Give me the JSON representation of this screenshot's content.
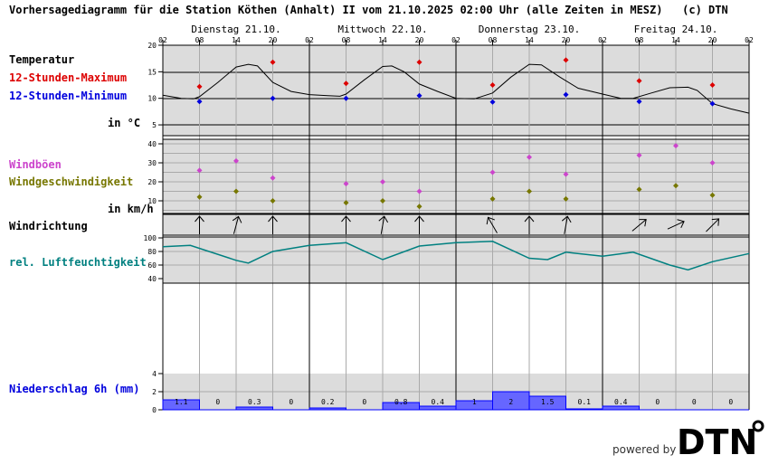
{
  "title": "Vorhersagediagramm für die Station Köthen (Anhalt) II vom 21.10.2025 02:00 Uhr (alle Zeiten in MESZ)   (c) DTN",
  "labels": {
    "temp": "Temperatur",
    "tmax": "12-Stunden-Maximum",
    "tmin": "12-Stunden-Minimum",
    "temp_unit": "in °C",
    "gust": "Windböen",
    "wind": "Windgeschwindigkeit",
    "wind_unit": "in km/h",
    "dir": "Windrichtung",
    "hum": "rel. Luftfeuchtigkeit",
    "precip": "Niederschlag 6h (mm)"
  },
  "footer": {
    "powered": "powered by",
    "logo": "DTN"
  },
  "colors": {
    "max": "#dd0000",
    "min": "#0000dd",
    "gust": "#cc44cc",
    "wind": "#777700",
    "hum": "#008080",
    "precip": "#6666ff",
    "panel": "#dcdcdc"
  },
  "chart_data": {
    "type": "line",
    "days": [
      "Dienstag 21.10.",
      "Mittwoch 22.10.",
      "Donnerstag 23.10.",
      "Freitag 24.10."
    ],
    "hour_ticks": [
      "02",
      "08",
      "14",
      "20",
      "02",
      "08",
      "14",
      "20",
      "02",
      "08",
      "14",
      "20",
      "02",
      "08",
      "14",
      "20",
      "02"
    ],
    "temperature": {
      "ylim": [
        5,
        20
      ],
      "ticks": [
        "20",
        "15",
        "10",
        "5"
      ],
      "curve": [
        [
          "21.10. 02:00",
          10.6
        ],
        [
          "21.10. 05:00",
          10.0
        ],
        [
          "21.10. 07:00",
          9.9
        ],
        [
          "21.10. 08:00",
          10.3
        ],
        [
          "21.10. 11:00",
          13
        ],
        [
          "21.10. 14:00",
          15.9
        ],
        [
          "21.10. 16:00",
          16.4
        ],
        [
          "21.10. 17:30",
          16.1
        ],
        [
          "21.10. 20:00",
          13
        ],
        [
          "21.10. 23:00",
          11.3
        ],
        [
          "22.10. 02:00",
          10.7
        ],
        [
          "22.10. 05:00",
          10.5
        ],
        [
          "22.10. 07:00",
          10.4
        ],
        [
          "22.10. 08:00",
          10.8
        ],
        [
          "22.10. 11:00",
          13.5
        ],
        [
          "22.10. 14:00",
          16
        ],
        [
          "22.10. 15:30",
          16.1
        ],
        [
          "22.10. 17:30",
          15
        ],
        [
          "22.10. 20:00",
          12.7
        ],
        [
          "22.10. 23:00",
          11.3
        ],
        [
          "23.10. 02:00",
          10.0
        ],
        [
          "23.10. 05:00",
          9.9
        ],
        [
          "23.10. 08:00",
          11
        ],
        [
          "23.10. 11:00",
          14
        ],
        [
          "23.10. 14:00",
          16.4
        ],
        [
          "23.10. 16:00",
          16.3
        ],
        [
          "23.10. 19:00",
          14
        ],
        [
          "23.10. 22:00",
          11.9
        ],
        [
          "24.10. 02:00",
          10.8
        ],
        [
          "24.10. 05:00",
          10.0
        ],
        [
          "24.10. 07:00",
          10.0
        ],
        [
          "24.10. 10:00",
          11
        ],
        [
          "24.10. 13:00",
          12
        ],
        [
          "24.10. 16:00",
          12.1
        ],
        [
          "24.10. 17:30",
          11.5
        ],
        [
          "24.10. 20:00",
          9
        ],
        [
          "24.10. 23:00",
          8
        ],
        [
          "25.10. 02:00",
          7.2
        ]
      ],
      "max": [
        [
          "21.10. 08:00",
          12.2
        ],
        [
          "21.10. 20:00",
          16.8
        ],
        [
          "22.10. 08:00",
          12.8
        ],
        [
          "22.10. 20:00",
          16.8
        ],
        [
          "23.10. 08:00",
          12.5
        ],
        [
          "23.10. 20:00",
          17.2
        ],
        [
          "24.10. 08:00",
          13.3
        ],
        [
          "24.10. 20:00",
          12.5
        ]
      ],
      "min": [
        [
          "21.10. 08:00",
          9.4
        ],
        [
          "21.10. 20:00",
          10.0
        ],
        [
          "22.10. 08:00",
          10.0
        ],
        [
          "22.10. 20:00",
          10.5
        ],
        [
          "23.10. 08:00",
          9.3
        ],
        [
          "23.10. 20:00",
          10.7
        ],
        [
          "24.10. 08:00",
          9.4
        ],
        [
          "24.10. 20:00",
          9.0
        ]
      ]
    },
    "wind": {
      "ylim": [
        0,
        40
      ],
      "ticks": [
        "40",
        "30",
        "20",
        "10"
      ],
      "times": [
        "21.10. 08:00",
        "21.10. 14:00",
        "21.10. 20:00",
        "22.10. 08:00",
        "22.10. 14:00",
        "22.10. 20:00",
        "23.10. 08:00",
        "23.10. 14:00",
        "23.10. 20:00",
        "24.10. 08:00",
        "24.10. 14:00",
        "24.10. 20:00"
      ],
      "gusts": [
        26,
        31,
        22,
        19,
        20,
        15,
        25,
        33,
        24,
        34,
        39,
        30
      ],
      "speed": [
        12,
        15,
        10,
        9,
        10,
        7,
        11,
        15,
        11,
        16,
        18,
        13
      ],
      "direction_deg": [
        0,
        15,
        0,
        0,
        10,
        0,
        -30,
        0,
        10,
        50,
        65,
        45
      ]
    },
    "humidity": {
      "ylim": [
        40,
        100
      ],
      "ticks": [
        "100",
        "80",
        "60",
        "40"
      ],
      "curve": [
        [
          "21.10. 02:00",
          87
        ],
        [
          "21.10. 06:30",
          89
        ],
        [
          "21.10. 14:00",
          67
        ],
        [
          "21.10. 16:00",
          63
        ],
        [
          "21.10. 20:00",
          80
        ],
        [
          "22.10. 02:00",
          89
        ],
        [
          "22.10. 08:00",
          93
        ],
        [
          "22.10. 14:00",
          68
        ],
        [
          "22.10. 20:00",
          88
        ],
        [
          "23.10. 02:00",
          93
        ],
        [
          "23.10. 08:00",
          95
        ],
        [
          "23.10. 14:00",
          70
        ],
        [
          "23.10. 17:00",
          68
        ],
        [
          "23.10. 20:00",
          79
        ],
        [
          "24.10. 02:00",
          73
        ],
        [
          "24.10. 07:00",
          79
        ],
        [
          "24.10. 13:00",
          60
        ],
        [
          "24.10. 16:00",
          53
        ],
        [
          "24.10. 20:00",
          65
        ],
        [
          "25.10. 02:00",
          77
        ]
      ]
    },
    "precipitation": {
      "ylim": [
        0,
        4
      ],
      "ticks": [
        "4",
        "2",
        "0"
      ],
      "values": [
        1.1,
        0,
        0.3,
        0,
        0.2,
        0,
        0.8,
        0.4,
        1,
        2,
        1.5,
        0.1,
        0.4,
        0,
        0,
        0
      ],
      "labels": [
        "1.1",
        "0",
        "0.3",
        "0",
        "0.2",
        "0",
        "0.8",
        "0.4",
        "1",
        "2",
        "1.5",
        "0.1",
        "0.4",
        "0",
        "0",
        "0"
      ]
    }
  }
}
